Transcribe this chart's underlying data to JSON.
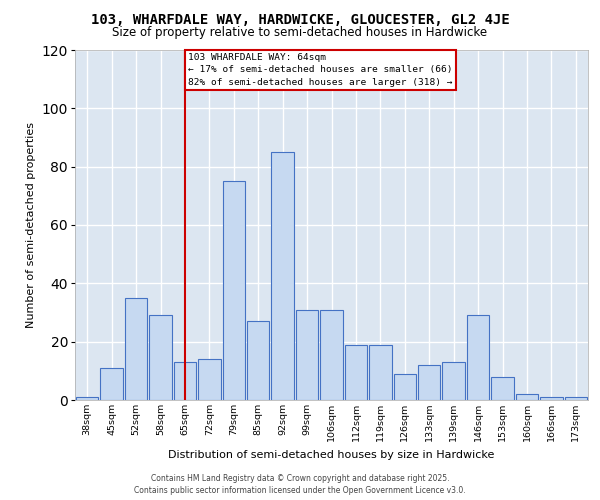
{
  "title_line1": "103, WHARFDALE WAY, HARDWICKE, GLOUCESTER, GL2 4JE",
  "title_line2": "Size of property relative to semi-detached houses in Hardwicke",
  "xlabel": "Distribution of semi-detached houses by size in Hardwicke",
  "ylabel": "Number of semi-detached properties",
  "categories": [
    "38sqm",
    "45sqm",
    "52sqm",
    "58sqm",
    "65sqm",
    "72sqm",
    "79sqm",
    "85sqm",
    "92sqm",
    "99sqm",
    "106sqm",
    "112sqm",
    "119sqm",
    "126sqm",
    "133sqm",
    "139sqm",
    "146sqm",
    "153sqm",
    "160sqm",
    "166sqm",
    "173sqm"
  ],
  "values": [
    1,
    11,
    35,
    29,
    13,
    14,
    75,
    27,
    85,
    31,
    31,
    19,
    19,
    9,
    12,
    13,
    29,
    8,
    2,
    1,
    1
  ],
  "bar_color": "#c6d9f1",
  "bar_edge_color": "#4472c4",
  "vline_x_index": 4,
  "vline_color": "#cc0000",
  "annotation_title": "103 WHARFDALE WAY: 64sqm",
  "annotation_line1": "← 17% of semi-detached houses are smaller (66)",
  "annotation_line2": "82% of semi-detached houses are larger (318) →",
  "ylim": [
    0,
    120
  ],
  "yticks": [
    0,
    20,
    40,
    60,
    80,
    100,
    120
  ],
  "footer1": "Contains HM Land Registry data © Crown copyright and database right 2025.",
  "footer2": "Contains public sector information licensed under the Open Government Licence v3.0.",
  "bg_color": "#dce6f1"
}
